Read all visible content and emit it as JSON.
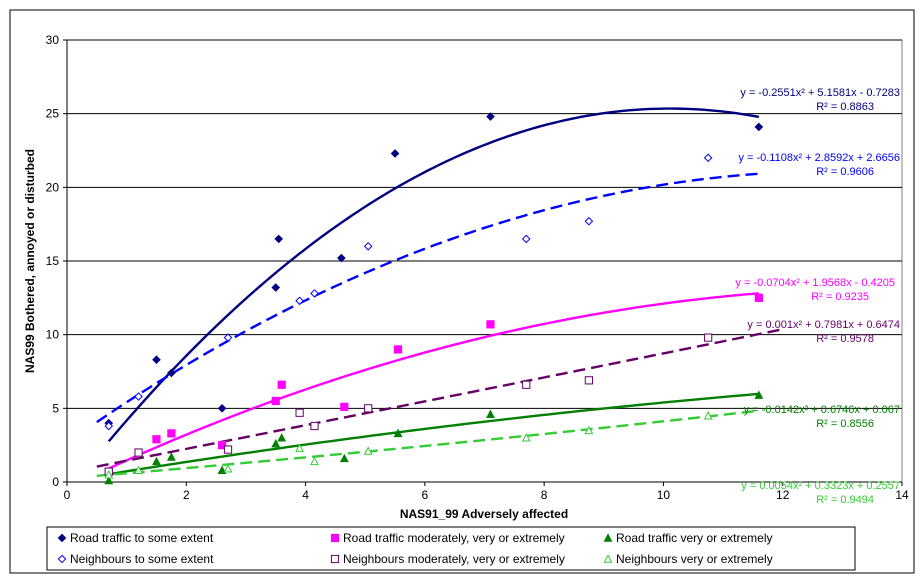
{
  "chart_data": {
    "type": "scatter",
    "xlabel": "NAS91_99 Adversely affected",
    "ylabel": "NAS99 Bothered, annoyed or disturbed",
    "xlim": [
      0,
      14
    ],
    "ylim": [
      0,
      30
    ],
    "x_ticks": [
      "0",
      "2",
      "4",
      "6",
      "8",
      "10",
      "12",
      "14"
    ],
    "y_ticks": [
      "0",
      "5",
      "10",
      "15",
      "20",
      "25",
      "30"
    ],
    "grid": "horizontal",
    "legend_position": "bottom",
    "series": [
      {
        "name": "Road traffic to some extent",
        "color": "#000080",
        "marker": "diamond-filled",
        "line": "solid",
        "points": [
          [
            0.7,
            4.0
          ],
          [
            1.5,
            8.3
          ],
          [
            1.75,
            7.4
          ],
          [
            2.6,
            5.0
          ],
          [
            3.5,
            13.2
          ],
          [
            3.55,
            16.5
          ],
          [
            4.6,
            15.2
          ],
          [
            5.5,
            22.3
          ],
          [
            7.1,
            24.8
          ],
          [
            11.6,
            24.1
          ]
        ],
        "trend": {
          "a": -0.2551,
          "b": 5.1581,
          "c": -0.7283,
          "x_range": [
            0.7,
            11.6
          ]
        },
        "equation": "y = -0.2551x² + 5.1581x - 0.7283",
        "r2": "R² = 0.8863"
      },
      {
        "name": "Neighbours to some extent",
        "color": "#0000FF",
        "marker": "diamond-open",
        "line": "dashed",
        "points": [
          [
            0.7,
            3.8
          ],
          [
            1.2,
            5.8
          ],
          [
            2.7,
            9.8
          ],
          [
            3.9,
            12.3
          ],
          [
            4.15,
            12.8
          ],
          [
            5.05,
            16.0
          ],
          [
            7.7,
            16.5
          ],
          [
            8.75,
            17.7
          ],
          [
            10.75,
            22.0
          ]
        ],
        "trend": {
          "a": -0.1108,
          "b": 2.8592,
          "c": 2.6656,
          "x_range": [
            0.5,
            11.6
          ]
        },
        "equation": "y = -0.1108x² + 2.8592x + 2.6656",
        "r2": "R² = 0.9606"
      },
      {
        "name": "Road traffic moderately, very or extremely",
        "color": "#FF00FF",
        "marker": "square-filled",
        "line": "solid",
        "points": [
          [
            0.7,
            0.7
          ],
          [
            1.5,
            2.9
          ],
          [
            1.75,
            3.3
          ],
          [
            2.6,
            2.5
          ],
          [
            3.5,
            5.5
          ],
          [
            3.6,
            6.6
          ],
          [
            4.65,
            5.1
          ],
          [
            5.55,
            9.0
          ],
          [
            7.1,
            10.7
          ],
          [
            11.6,
            12.5
          ]
        ],
        "trend": {
          "a": -0.0704,
          "b": 1.9568,
          "c": -0.4205,
          "x_range": [
            0.7,
            11.6
          ]
        },
        "equation": "y = -0.0704x² + 1.9568x - 0.4205",
        "r2": "R² = 0.9235"
      },
      {
        "name": "Neighbours moderately, very or extremely",
        "color": "#660066",
        "marker": "square-open",
        "line": "dashed",
        "points": [
          [
            0.7,
            0.7
          ],
          [
            1.2,
            2.0
          ],
          [
            2.7,
            2.2
          ],
          [
            3.9,
            4.7
          ],
          [
            4.15,
            3.8
          ],
          [
            5.05,
            5.0
          ],
          [
            7.7,
            6.6
          ],
          [
            8.75,
            6.9
          ],
          [
            10.75,
            9.8
          ]
        ],
        "trend": {
          "a": 0.001,
          "b": 0.7981,
          "c": 0.6474,
          "x_range": [
            0.5,
            12.0
          ]
        },
        "equation": "y = 0.001x² + 0.7981x + 0.6474",
        "r2": "R² = 0.9578"
      },
      {
        "name": "Road traffic very or extremely",
        "color": "#008000",
        "marker": "triangle-filled",
        "line": "solid",
        "points": [
          [
            0.7,
            0.1
          ],
          [
            1.5,
            1.4
          ],
          [
            1.75,
            1.7
          ],
          [
            2.6,
            0.8
          ],
          [
            3.5,
            2.6
          ],
          [
            3.6,
            3.0
          ],
          [
            4.65,
            1.6
          ],
          [
            5.55,
            3.3
          ],
          [
            7.1,
            4.6
          ],
          [
            11.6,
            5.9
          ]
        ],
        "trend": {
          "a": -0.0142,
          "b": 0.6746,
          "c": 0.067,
          "x_range": [
            0.7,
            11.6
          ]
        },
        "equation": "y = -0.0142x² + 0.6746x + 0.067",
        "r2": "R² = 0.8556"
      },
      {
        "name": "Neighbours very or extremely",
        "color": "#33CC33",
        "marker": "triangle-open",
        "line": "dashed",
        "points": [
          [
            0.7,
            0.5
          ],
          [
            1.2,
            0.8
          ],
          [
            2.7,
            0.9
          ],
          [
            3.9,
            2.3
          ],
          [
            4.15,
            1.4
          ],
          [
            5.05,
            2.1
          ],
          [
            7.7,
            3.0
          ],
          [
            8.75,
            3.5
          ],
          [
            10.75,
            4.5
          ]
        ],
        "trend": {
          "a": 0.0054,
          "b": 0.3323,
          "c": 0.2557,
          "x_range": [
            0.5,
            11.6
          ]
        },
        "equation": "y = 0.0054x² + 0.3323x + 0.2557",
        "r2": "R² = 0.9494"
      }
    ]
  }
}
